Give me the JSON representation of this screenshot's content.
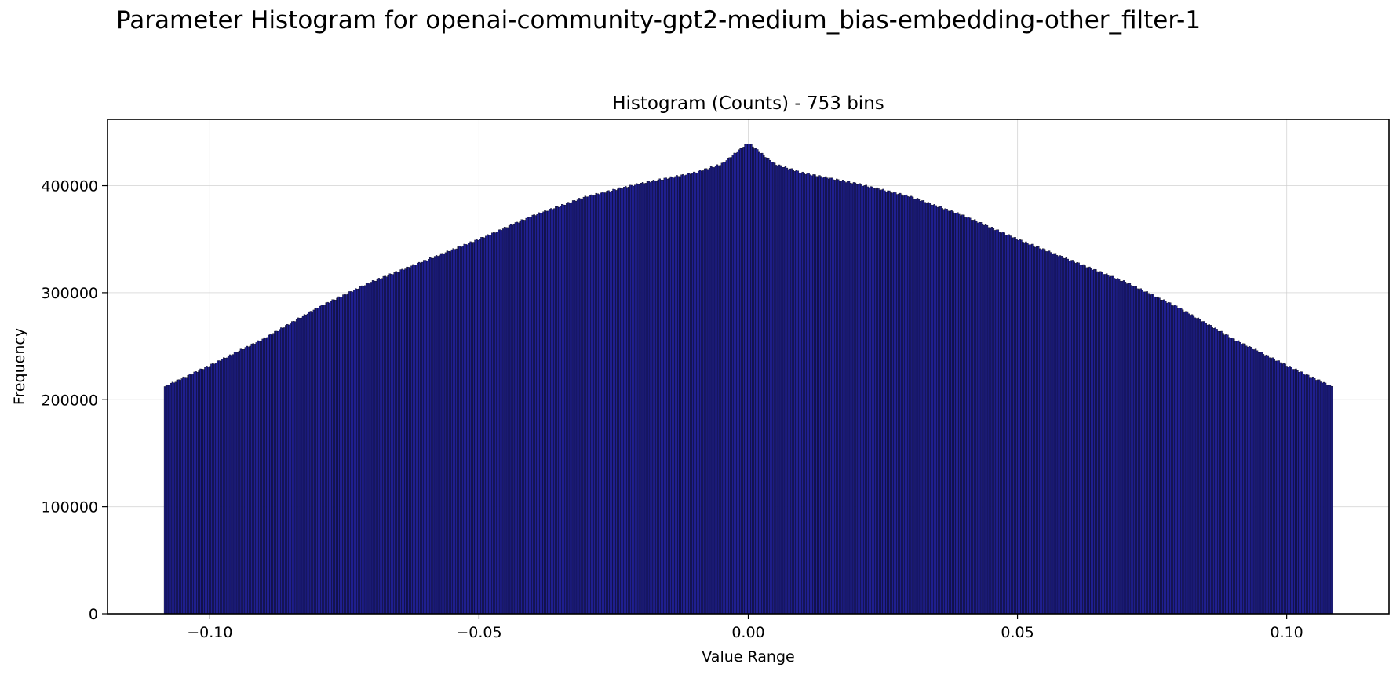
{
  "suptitle": "Parameter Histogram for openai-community-gpt2-medium_bias-embedding-other_filter-1",
  "chart_data": {
    "type": "bar",
    "title": "Histogram (Counts) - 753 bins",
    "xlabel": "Value Range",
    "ylabel": "Frequency",
    "bins": 753,
    "data_range": [
      -0.1085,
      0.1085
    ],
    "xlim": [
      -0.119,
      0.119
    ],
    "ylim": [
      0,
      462000
    ],
    "xticks": [
      -0.1,
      -0.05,
      0.0,
      0.05,
      0.1
    ],
    "xtick_labels": [
      "−0.10",
      "−0.05",
      "0.00",
      "0.05",
      "0.10"
    ],
    "yticks": [
      0,
      100000,
      200000,
      300000,
      400000
    ],
    "ytick_labels": [
      "0",
      "100000",
      "200000",
      "300000",
      "400000"
    ],
    "grid": true,
    "bar_color": "#1f1f8f",
    "edge_color": "#000000",
    "profile": {
      "x": [
        -0.1085,
        -0.1,
        -0.09,
        -0.08,
        -0.07,
        -0.06,
        -0.05,
        -0.04,
        -0.03,
        -0.02,
        -0.01,
        -0.005,
        0.0,
        0.005,
        0.01,
        0.02,
        0.03,
        0.04,
        0.05,
        0.06,
        0.07,
        0.08,
        0.09,
        0.1,
        0.1085
      ],
      "y": [
        212000,
        232000,
        257000,
        286000,
        310000,
        330000,
        350000,
        372000,
        390000,
        402000,
        412000,
        420000,
        440000,
        420000,
        412000,
        402000,
        390000,
        372000,
        350000,
        330000,
        310000,
        286000,
        257000,
        232000,
        212000
      ]
    }
  }
}
